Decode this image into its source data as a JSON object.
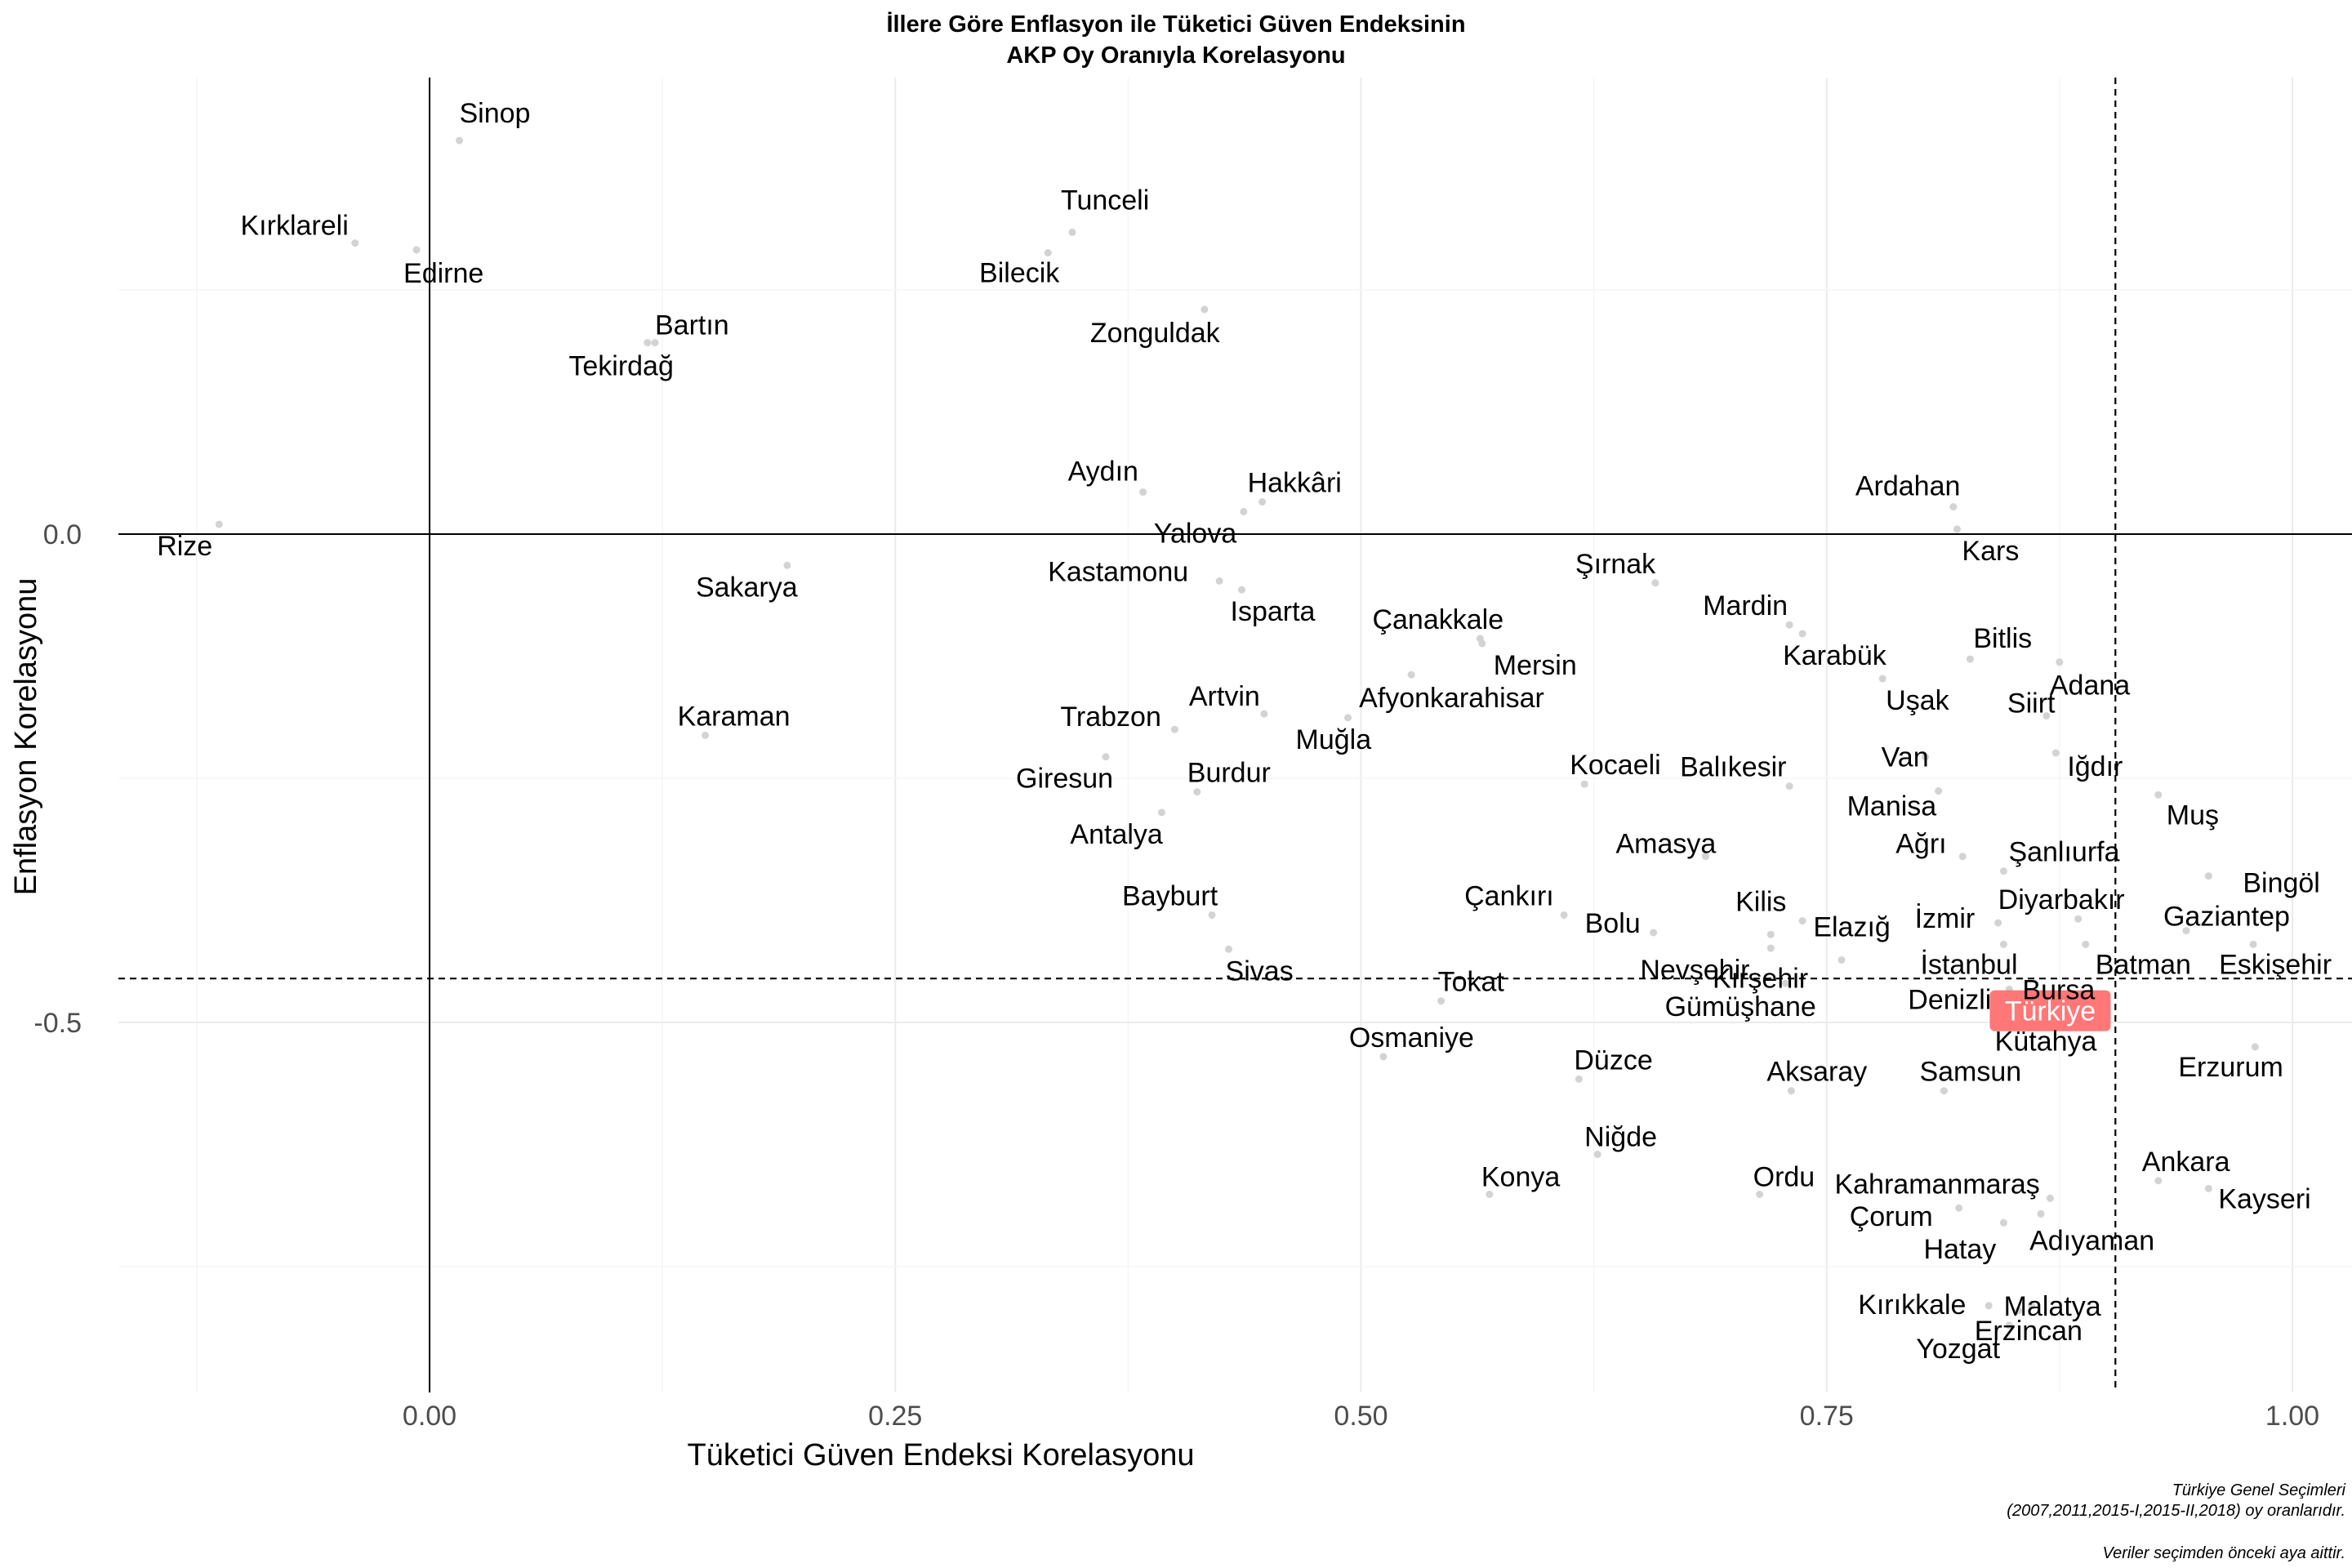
{
  "chart_data": {
    "type": "scatter",
    "title": [
      "İllere Göre Enflasyon ile Tüketici Güven Endeksinin",
      "AKP Oy Oranıyla Korelasyonu"
    ],
    "xlabel": "Tüketici Güven Endeksi Korelasyonu",
    "ylabel": "Enflasyon Korelasyonu",
    "xlim": [
      -0.17,
      1.03
    ],
    "ylim": [
      -0.88,
      0.46
    ],
    "x_ticks": [
      0.0,
      0.25,
      0.5,
      0.75,
      1.0
    ],
    "x_tick_labels": [
      "0.00",
      "0.25",
      "0.50",
      "0.75",
      "1.00"
    ],
    "y_ticks": [
      0.0,
      -0.5
    ],
    "y_tick_labels": [
      "0.0",
      "-0.5"
    ],
    "grid": true,
    "reference_lines": {
      "x_solid": 0,
      "y_solid": 0,
      "x_dashed": 0.905,
      "y_dashed": -0.455
    },
    "colors": {
      "point": "#d3d3d3",
      "highlight_fill": "#ff6b6b",
      "highlight_text": "#ffffff"
    },
    "highlight": {
      "label": "Türkiye",
      "x": 0.87,
      "y": -0.488
    },
    "points": [
      {
        "label": "Sinop",
        "x": 0.016,
        "y": 0.403
      },
      {
        "label": "Kırklareli",
        "x": -0.04,
        "y": 0.298
      },
      {
        "label": "Edirne",
        "x": -0.007,
        "y": 0.291
      },
      {
        "label": "Tunceli",
        "x": 0.345,
        "y": 0.309
      },
      {
        "label": "Bilecik",
        "x": 0.332,
        "y": 0.288
      },
      {
        "label": "Zonguldak",
        "x": 0.416,
        "y": 0.23
      },
      {
        "label": "Bartın",
        "x": 0.121,
        "y": 0.196
      },
      {
        "label": "Tekirdağ",
        "x": 0.117,
        "y": 0.196
      },
      {
        "label": "Aydın",
        "x": 0.383,
        "y": 0.043
      },
      {
        "label": "Hakkâri",
        "x": 0.447,
        "y": 0.033
      },
      {
        "label": "Yalova",
        "x": 0.437,
        "y": 0.023
      },
      {
        "label": "Ardahan",
        "x": 0.818,
        "y": 0.028
      },
      {
        "label": "Kars",
        "x": 0.82,
        "y": 0.005
      },
      {
        "label": "Rize",
        "x": -0.113,
        "y": 0.01
      },
      {
        "label": "Sakarya",
        "x": 0.192,
        "y": -0.032
      },
      {
        "label": "Kastamonu",
        "x": 0.424,
        "y": -0.048
      },
      {
        "label": "Isparta",
        "x": 0.436,
        "y": -0.057
      },
      {
        "label": "Şırnak",
        "x": 0.658,
        "y": -0.05
      },
      {
        "label": "Çanakkale",
        "x": 0.564,
        "y": -0.107
      },
      {
        "label": "Mersin",
        "x": 0.565,
        "y": -0.112
      },
      {
        "label": "Mardin",
        "x": 0.73,
        "y": -0.093
      },
      {
        "label": "Karabük",
        "x": 0.737,
        "y": -0.102
      },
      {
        "label": "Bitlis",
        "x": 0.827,
        "y": -0.128
      },
      {
        "label": "Adana",
        "x": 0.875,
        "y": -0.131
      },
      {
        "label": "Uşak",
        "x": 0.78,
        "y": -0.148
      },
      {
        "label": "Siirt",
        "x": 0.868,
        "y": -0.186
      },
      {
        "label": "Afyonkarahisar",
        "x": 0.527,
        "y": -0.144
      },
      {
        "label": "Muğla",
        "x": 0.493,
        "y": -0.188
      },
      {
        "label": "Artvin",
        "x": 0.448,
        "y": -0.184
      },
      {
        "label": "Trabzon",
        "x": 0.4,
        "y": -0.2
      },
      {
        "label": "Karaman",
        "x": 0.148,
        "y": -0.206
      },
      {
        "label": "Giresun",
        "x": 0.363,
        "y": -0.228
      },
      {
        "label": "Burdur",
        "x": 0.412,
        "y": -0.264
      },
      {
        "label": "Antalya",
        "x": 0.393,
        "y": -0.285
      },
      {
        "label": "Kocaeli",
        "x": 0.62,
        "y": -0.256
      },
      {
        "label": "Balıkesir",
        "x": 0.73,
        "y": -0.258
      },
      {
        "label": "Van",
        "x": 0.803,
        "y": -0.228
      },
      {
        "label": "Manisa",
        "x": 0.81,
        "y": -0.263
      },
      {
        "label": "Iğdır",
        "x": 0.873,
        "y": -0.224
      },
      {
        "label": "Muş",
        "x": 0.928,
        "y": -0.267
      },
      {
        "label": "Amasya",
        "x": 0.685,
        "y": -0.33
      },
      {
        "label": "Ağrı",
        "x": 0.823,
        "y": -0.33
      },
      {
        "label": "Şanlıurfa",
        "x": 0.845,
        "y": -0.345
      },
      {
        "label": "Bingöl",
        "x": 0.955,
        "y": -0.35
      },
      {
        "label": "Bayburt",
        "x": 0.42,
        "y": -0.39
      },
      {
        "label": "Sivas",
        "x": 0.429,
        "y": -0.425
      },
      {
        "label": "Çankırı",
        "x": 0.609,
        "y": -0.39
      },
      {
        "label": "Bolu",
        "x": 0.657,
        "y": -0.408
      },
      {
        "label": "Kilis",
        "x": 0.737,
        "y": -0.396
      },
      {
        "label": "Elazığ",
        "x": 0.72,
        "y": -0.41
      },
      {
        "label": "İzmir",
        "x": 0.842,
        "y": -0.398
      },
      {
        "label": "Diyarbakır",
        "x": 0.885,
        "y": -0.394
      },
      {
        "label": "Gaziantep",
        "x": 0.943,
        "y": -0.406
      },
      {
        "label": "Batman",
        "x": 0.889,
        "y": -0.42
      },
      {
        "label": "Nevşehir",
        "x": 0.72,
        "y": -0.424
      },
      {
        "label": "Kırşehir",
        "x": 0.758,
        "y": -0.436
      },
      {
        "label": "İstanbul",
        "x": 0.845,
        "y": -0.42
      },
      {
        "label": "Eskişehir",
        "x": 0.979,
        "y": -0.42
      },
      {
        "label": "Tokat",
        "x": 0.543,
        "y": -0.478
      },
      {
        "label": "Gümüşhane",
        "x": 0.728,
        "y": -0.46
      },
      {
        "label": "Denizli",
        "x": 0.848,
        "y": -0.466
      },
      {
        "label": "Bursa",
        "x": 0.877,
        "y": -0.476
      },
      {
        "label": "Kütahya",
        "x": 0.885,
        "y": -0.497
      },
      {
        "label": "Osmaniye",
        "x": 0.512,
        "y": -0.535
      },
      {
        "label": "Düzce",
        "x": 0.617,
        "y": -0.558
      },
      {
        "label": "Aksaray",
        "x": 0.731,
        "y": -0.57
      },
      {
        "label": "Samsun",
        "x": 0.813,
        "y": -0.57
      },
      {
        "label": "Erzurum",
        "x": 0.98,
        "y": -0.525
      },
      {
        "label": "Niğde",
        "x": 0.627,
        "y": -0.635
      },
      {
        "label": "Konya",
        "x": 0.569,
        "y": -0.676
      },
      {
        "label": "Ordu",
        "x": 0.714,
        "y": -0.676
      },
      {
        "label": "Kahramanmaraş",
        "x": 0.87,
        "y": -0.68
      },
      {
        "label": "Ankara",
        "x": 0.928,
        "y": -0.662
      },
      {
        "label": "Kayseri",
        "x": 0.955,
        "y": -0.67
      },
      {
        "label": "Çorum",
        "x": 0.821,
        "y": -0.69
      },
      {
        "label": "Adıyaman",
        "x": 0.865,
        "y": -0.696
      },
      {
        "label": "Hatay",
        "x": 0.845,
        "y": -0.705
      },
      {
        "label": "Malatya",
        "x": 0.86,
        "y": -0.79
      },
      {
        "label": "Kırıkkale",
        "x": 0.837,
        "y": -0.79
      },
      {
        "label": "Erzincan",
        "x": 0.853,
        "y": -0.795
      },
      {
        "label": "Yozgat",
        "x": 0.848,
        "y": -0.81
      }
    ],
    "caption": [
      "Türkiye Genel Seçimleri",
      "(2007,2011,2015-I,2015-II,2018) oy oranlarıdır.",
      "Veriler seçimden önceki aya aittir."
    ]
  }
}
